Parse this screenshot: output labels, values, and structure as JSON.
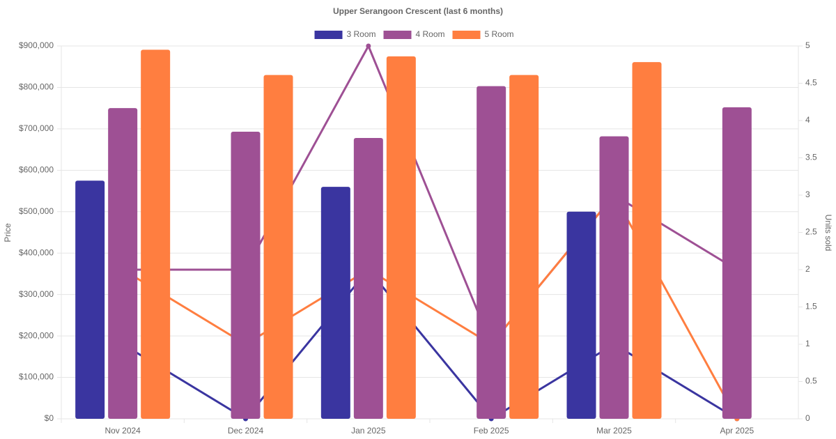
{
  "chart_data": {
    "type": "bar-line",
    "title": "Upper Serangoon Crescent (last 6 months)",
    "ylabel": "Price",
    "y2label": "Units sold",
    "categories": [
      "Nov 2024",
      "Dec 2024",
      "Jan 2025",
      "Feb 2025",
      "Mar 2025",
      "Apr 2025"
    ],
    "series": [
      {
        "name": "3 Room",
        "color": "#3a35a0",
        "values": [
          575000,
          null,
          560000,
          null,
          500000,
          null
        ],
        "units_sold": [
          1,
          0,
          2,
          0,
          1,
          0
        ]
      },
      {
        "name": "4 Room",
        "color": "#9e5094",
        "values": [
          750000,
          693000,
          678000,
          803000,
          682000,
          752000
        ],
        "units_sold": [
          2,
          2,
          5,
          1,
          3,
          2
        ]
      },
      {
        "name": "5 Room",
        "color": "#ff7e40",
        "values": [
          891000,
          830000,
          875000,
          830000,
          861000,
          null
        ],
        "units_sold": [
          2,
          1,
          2,
          1,
          3,
          0
        ]
      }
    ],
    "ylim": [
      0,
      900000
    ],
    "yticks": [
      {
        "value": 0,
        "label": "$0"
      },
      {
        "value": 100000,
        "label": "$100,000"
      },
      {
        "value": 200000,
        "label": "$200,000"
      },
      {
        "value": 300000,
        "label": "$300,000"
      },
      {
        "value": 400000,
        "label": "$400,000"
      },
      {
        "value": 500000,
        "label": "$500,000"
      },
      {
        "value": 600000,
        "label": "$600,000"
      },
      {
        "value": 700000,
        "label": "$700,000"
      },
      {
        "value": 800000,
        "label": "$800,000"
      },
      {
        "value": 900000,
        "label": "$900,000"
      }
    ],
    "y2lim": [
      0,
      5
    ],
    "y2ticks": [
      0,
      0.5,
      1,
      1.5,
      2,
      2.5,
      3,
      3.5,
      4,
      4.5,
      5
    ],
    "grid": true,
    "legend": "top"
  }
}
